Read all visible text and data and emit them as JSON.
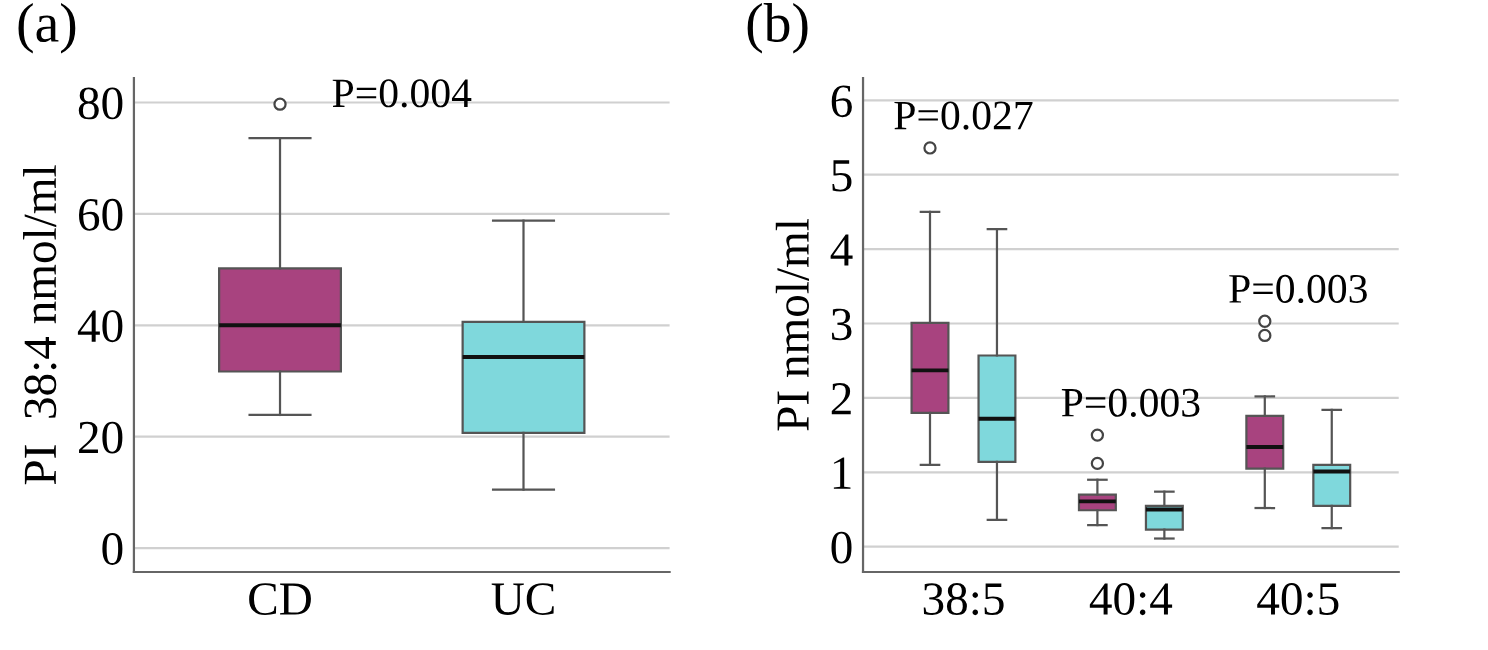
{
  "chart_data": [
    {
      "type": "box",
      "title": "(a)",
      "ylabel": "PI  38:4 nmol/ml",
      "categories": [
        "CD",
        "UC"
      ],
      "boxes": [
        {
          "low": 23.9,
          "q1": 31.7,
          "median": 40,
          "q3": 50.2,
          "high": 73.6,
          "outliers": [
            79.7
          ]
        },
        {
          "low": 10.5,
          "q1": 20.7,
          "median": 34.3,
          "q3": 40.6,
          "high": 58.8
        }
      ],
      "colors": [
        "#a8437f",
        "#7fd8dc"
      ],
      "ylim": [
        -4.3,
        84.4
      ],
      "yticks": [
        0,
        20,
        40,
        60,
        80
      ],
      "grid": "y",
      "annotations": [
        "P=0.004"
      ]
    },
    {
      "type": "box",
      "title": "(b)",
      "ylabel": "PI nmol/ml",
      "categories": [
        "38:5",
        "40:4",
        "40:5"
      ],
      "series": [
        {
          "color": "#a8437f",
          "boxes": [
            {
              "low": 1.1,
              "q1": 1.8,
              "median": 2.37,
              "q3": 3.01,
              "high": 4.5,
              "outliers": [
                5.36
              ]
            },
            {
              "low": 0.29,
              "q1": 0.49,
              "median": 0.61,
              "q3": 0.7,
              "high": 0.9,
              "outliers": [
                1.12,
                1.5
              ]
            },
            {
              "low": 0.52,
              "q1": 1.05,
              "median": 1.34,
              "q3": 1.76,
              "high": 2.02,
              "outliers": [
                2.84,
                3.03
              ]
            }
          ]
        },
        {
          "color": "#7fd8dc",
          "boxes": [
            {
              "low": 0.36,
              "q1": 1.14,
              "median": 1.72,
              "q3": 2.57,
              "high": 4.27
            },
            {
              "low": 0.11,
              "q1": 0.23,
              "median": 0.5,
              "q3": 0.55,
              "high": 0.74
            },
            {
              "low": 0.25,
              "q1": 0.55,
              "median": 1.01,
              "q3": 1.1,
              "high": 1.84
            }
          ]
        }
      ],
      "ylim": [
        -0.34,
        6.3
      ],
      "yticks": [
        0,
        1,
        2,
        3,
        4,
        5,
        6
      ],
      "grid": "y",
      "annotations": [
        "P=0.027",
        "P=0.003",
        "P=0.003"
      ]
    }
  ]
}
